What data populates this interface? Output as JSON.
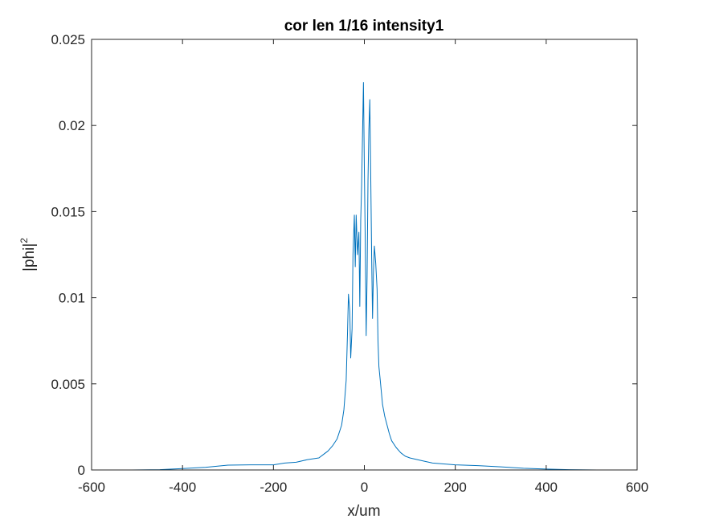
{
  "chart_data": {
    "type": "line",
    "title": "cor len 1/16 intensity1",
    "xlabel": "x/um",
    "ylabel_base": "|phi|",
    "ylabel_sup": "2",
    "xlim": [
      -600,
      600
    ],
    "ylim": [
      0,
      0.025
    ],
    "xticks": [
      -600,
      -400,
      -200,
      0,
      200,
      400,
      600
    ],
    "xtick_labels": [
      "-600",
      "-400",
      "-200",
      "0",
      "200",
      "400",
      "600"
    ],
    "yticks": [
      0,
      0.005,
      0.01,
      0.015,
      0.02,
      0.025
    ],
    "ytick_labels": [
      "0",
      "0.005",
      "0.01",
      "0.015",
      "0.02",
      "0.025"
    ],
    "grid": false,
    "line_color": "#0072BD",
    "series": [
      {
        "x": [
          -512,
          -450,
          -400,
          -350,
          -300,
          -250,
          -200,
          -175,
          -150,
          -125,
          -100,
          -90,
          -80,
          -70,
          -60,
          -50,
          -45,
          -40,
          -37,
          -35,
          -32,
          -30,
          -27,
          -25,
          -22,
          -20,
          -18,
          -15,
          -12,
          -10,
          -8,
          -6,
          -4,
          -2,
          0,
          2,
          4,
          6,
          8,
          10,
          12,
          14,
          16,
          18,
          20,
          22,
          25,
          28,
          30,
          32,
          35,
          40,
          45,
          50,
          55,
          60,
          70,
          80,
          90,
          100,
          125,
          150,
          175,
          200,
          250,
          300,
          350,
          400,
          450,
          512
        ],
        "y": [
          0.0,
          2e-05,
          8e-05,
          0.00015,
          0.00028,
          0.0003,
          0.0003,
          0.0004,
          0.00045,
          0.0006,
          0.0007,
          0.0009,
          0.0011,
          0.0014,
          0.0018,
          0.0026,
          0.0035,
          0.0052,
          0.008,
          0.0102,
          0.0092,
          0.0065,
          0.0082,
          0.0125,
          0.0148,
          0.0118,
          0.0148,
          0.0125,
          0.0138,
          0.0095,
          0.0145,
          0.0165,
          0.0195,
          0.0225,
          0.0175,
          0.0132,
          0.0078,
          0.0112,
          0.0168,
          0.0198,
          0.0215,
          0.0172,
          0.0125,
          0.0088,
          0.0115,
          0.013,
          0.012,
          0.0105,
          0.0075,
          0.006,
          0.0052,
          0.0038,
          0.0031,
          0.0026,
          0.0021,
          0.0017,
          0.0013,
          0.001,
          0.0008,
          0.0007,
          0.00055,
          0.0004,
          0.00035,
          0.0003,
          0.00025,
          0.00018,
          0.0001,
          5e-05,
          2e-05,
          0.0
        ]
      }
    ]
  }
}
